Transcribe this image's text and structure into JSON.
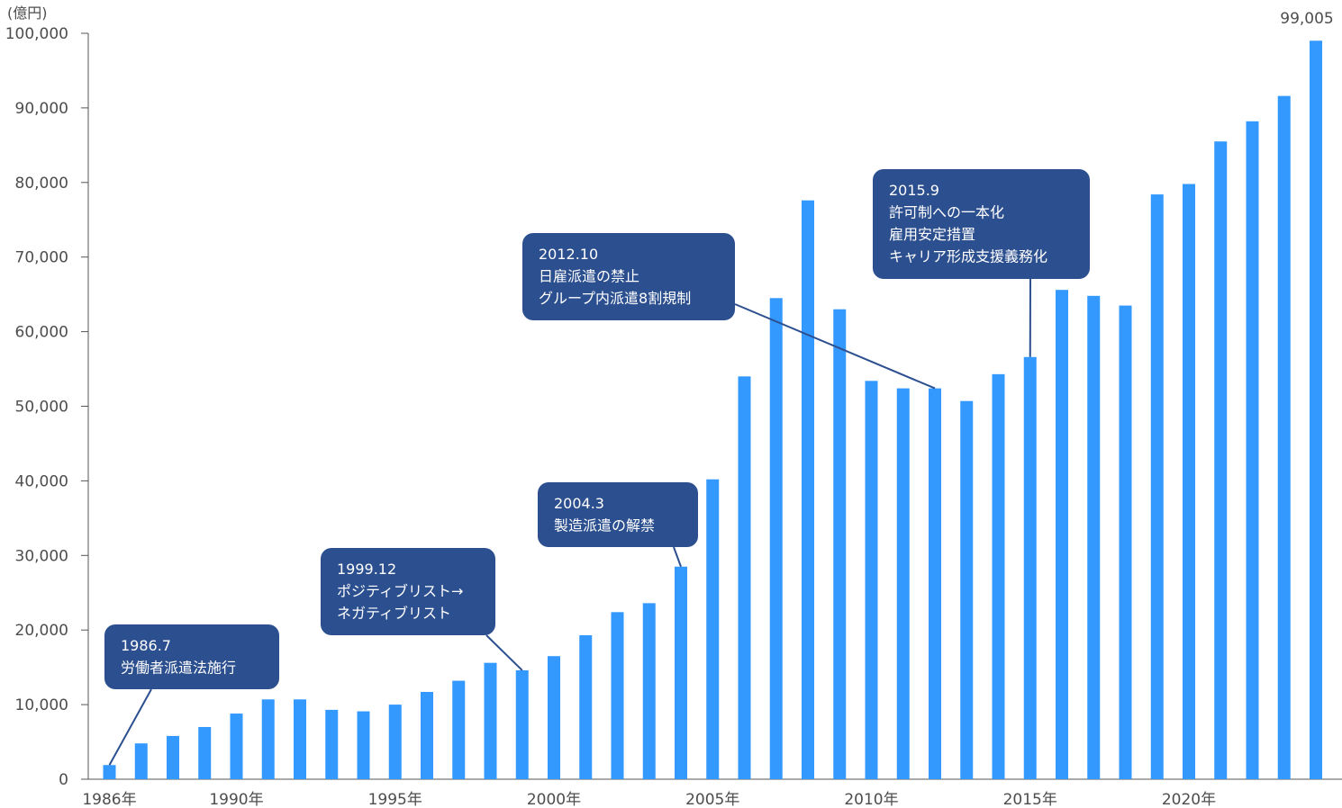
{
  "chart_data": {
    "type": "bar",
    "ylabel": "(億円)",
    "ylim": [
      0,
      100000
    ],
    "yticks": [
      0,
      10000,
      20000,
      30000,
      40000,
      50000,
      60000,
      70000,
      80000,
      90000,
      100000
    ],
    "ytick_labels": [
      "0",
      "10,000",
      "20,000",
      "30,000",
      "40,000",
      "50,000",
      "60,000",
      "70,000",
      "80,000",
      "90,000",
      "100,000"
    ],
    "categories": [
      1986,
      1987,
      1988,
      1989,
      1990,
      1991,
      1992,
      1993,
      1994,
      1995,
      1996,
      1997,
      1998,
      1999,
      2000,
      2001,
      2002,
      2003,
      2004,
      2005,
      2006,
      2007,
      2008,
      2009,
      2010,
      2011,
      2012,
      2013,
      2014,
      2015,
      2016,
      2017,
      2018,
      2019,
      2020,
      2021,
      2022,
      2023,
      2024
    ],
    "xtick_labels": [
      {
        "year": 1986,
        "label": "1986年"
      },
      {
        "year": 1990,
        "label": "1990年"
      },
      {
        "year": 1995,
        "label": "1995年"
      },
      {
        "year": 2000,
        "label": "2000年"
      },
      {
        "year": 2005,
        "label": "2005年"
      },
      {
        "year": 2010,
        "label": "2010年"
      },
      {
        "year": 2015,
        "label": "2015年"
      },
      {
        "year": 2020,
        "label": "2020年"
      }
    ],
    "values": [
      1900,
      4800,
      5800,
      7000,
      8800,
      10700,
      10700,
      9300,
      9100,
      10000,
      11700,
      13200,
      15600,
      14600,
      16500,
      19300,
      22400,
      23600,
      28500,
      40200,
      54000,
      64500,
      77600,
      63000,
      53400,
      52400,
      52400,
      50700,
      54300,
      56600,
      65600,
      64800,
      63500,
      78400,
      79800,
      85500,
      88200,
      91600,
      99005
    ],
    "data_labels": [
      {
        "year": 2024,
        "label": "99,005"
      }
    ],
    "bar_color": "#3399ff",
    "grid": false,
    "annotations": [
      {
        "year": 1986,
        "lines": [
          "1986.7",
          "労働者派遣法施行"
        ]
      },
      {
        "year": 1999,
        "lines": [
          "1999.12",
          "ポジティブリスト→",
          "ネガティブリスト"
        ]
      },
      {
        "year": 2004,
        "lines": [
          "2004.3",
          "製造派遣の解禁"
        ]
      },
      {
        "year": 2012,
        "lines": [
          "2012.10",
          "日雇派遣の禁止",
          "グループ内派遣8割規制"
        ]
      },
      {
        "year": 2015,
        "lines": [
          "2015.9",
          "許可制への一本化",
          "雇用安定措置",
          "キャリア形成支援義務化"
        ]
      }
    ],
    "annotation_color": "#2c4f8f"
  }
}
